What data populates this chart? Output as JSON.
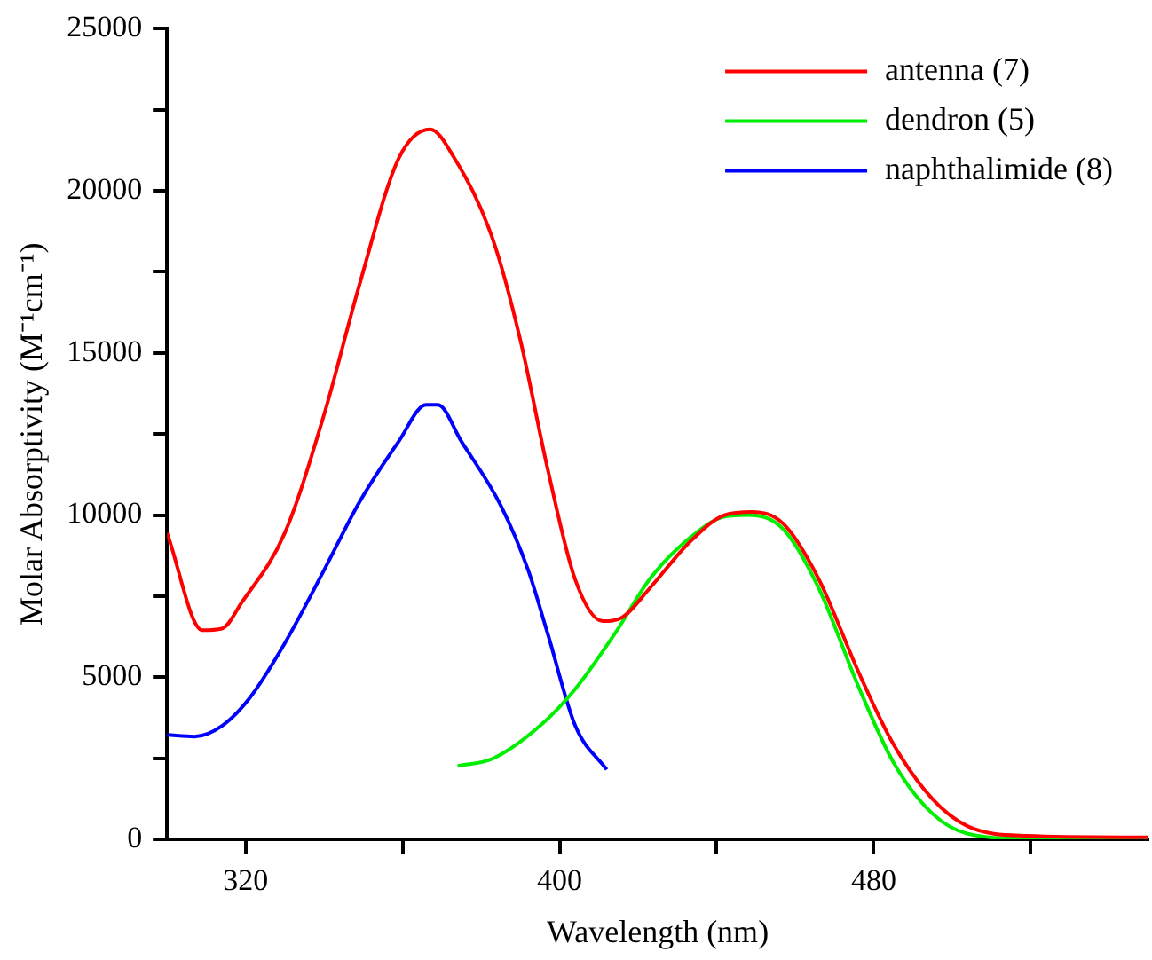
{
  "chart_data": {
    "type": "line",
    "xlabel": "Wavelength (nm)",
    "ylabel": "Molar Absorptivity (M⁻¹cm⁻¹)",
    "xlim": [
      300,
      550
    ],
    "xticks": [
      320,
      {
        "value": 360,
        "label": null
      },
      400,
      {
        "value": 440,
        "label": null
      },
      480,
      {
        "value": 520,
        "label": null
      }
    ],
    "ylim": [
      0,
      25000
    ],
    "yticks": [
      0,
      {
        "value": 2500,
        "label": null
      },
      5000,
      {
        "value": 7500,
        "label": null
      },
      10000,
      {
        "value": 12500,
        "label": null
      },
      15000,
      {
        "value": 17500,
        "label": null
      },
      20000,
      {
        "value": 22500,
        "label": null
      },
      25000
    ],
    "grid": false,
    "legend": "top right",
    "marker": "none",
    "line_style": "solid",
    "series": [
      {
        "name": "antenna (7)",
        "color": "#ff0000",
        "x": [
          300,
          309,
          314,
          319,
          330,
          340,
          349,
          359,
          367,
          373,
          383,
          390,
          397,
          404,
          411,
          416,
          423,
          433,
          442,
          449,
          457,
          466,
          476,
          485,
          495,
          504,
          519,
          550
        ],
        "values": [
          9450,
          6450,
          6500,
          7300,
          9450,
          13100,
          17100,
          21000,
          21900,
          21050,
          18500,
          15400,
          11400,
          8000,
          6730,
          6850,
          7750,
          9150,
          10000,
          10100,
          9730,
          8030,
          5200,
          2940,
          1240,
          400,
          110,
          60
        ]
      },
      {
        "name": "dendron (5)",
        "color": "#00ee00",
        "x": [
          374,
          383,
          395,
          404,
          414,
          423,
          433,
          442,
          448,
          457,
          466,
          476,
          485,
          495,
          504,
          519,
          550
        ],
        "values": [
          2260,
          2490,
          3500,
          4640,
          6330,
          8030,
          9280,
          9950,
          10000,
          9560,
          7750,
          4750,
          2380,
          790,
          170,
          20,
          0
        ]
      },
      {
        "name": "naphthalimide (8)",
        "color": "#0000ff",
        "x": [
          300,
          307,
          314,
          321,
          330,
          340,
          349,
          359,
          366,
          369,
          375,
          385,
          392,
          397,
          404,
          412
        ],
        "values": [
          3220,
          3170,
          3500,
          4350,
          6050,
          8300,
          10400,
          12270,
          13400,
          13400,
          12270,
          10300,
          8300,
          6330,
          3500,
          2150
        ]
      }
    ]
  }
}
